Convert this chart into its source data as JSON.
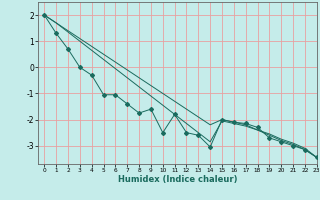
{
  "title": "",
  "xlabel": "Humidex (Indice chaleur)",
  "background_color": "#c5ecea",
  "grid_color": "#e8a0a0",
  "line_color": "#1a6b5e",
  "xlim": [
    -0.5,
    23
  ],
  "ylim": [
    -3.7,
    2.5
  ],
  "yticks": [
    -3,
    -2,
    -1,
    0,
    1,
    2
  ],
  "xticks": [
    0,
    1,
    2,
    3,
    4,
    5,
    6,
    7,
    8,
    9,
    10,
    11,
    12,
    13,
    14,
    15,
    16,
    17,
    18,
    19,
    20,
    21,
    22,
    23
  ],
  "series_jagged": [
    2.0,
    1.3,
    0.7,
    0.0,
    -0.3,
    -1.05,
    -1.05,
    -1.4,
    -1.75,
    -1.6,
    -2.5,
    -1.8,
    -2.5,
    -2.6,
    -3.05,
    -2.0,
    -2.1,
    -2.15,
    -2.3,
    -2.7,
    -2.85,
    -3.0,
    -3.15,
    -3.45
  ],
  "series_linear1": [
    2.0,
    1.7,
    1.4,
    1.1,
    0.8,
    0.5,
    0.2,
    -0.1,
    -0.4,
    -0.7,
    -1.0,
    -1.3,
    -1.6,
    -1.9,
    -2.2,
    -2.0,
    -2.1,
    -2.2,
    -2.4,
    -2.55,
    -2.75,
    -2.9,
    -3.1,
    -3.45
  ],
  "series_linear2": [
    2.0,
    1.7,
    1.35,
    1.0,
    0.65,
    0.3,
    -0.05,
    -0.4,
    -0.75,
    -1.1,
    -1.45,
    -1.8,
    -2.15,
    -2.5,
    -2.85,
    -2.05,
    -2.15,
    -2.25,
    -2.4,
    -2.6,
    -2.8,
    -2.95,
    -3.15,
    -3.45
  ]
}
